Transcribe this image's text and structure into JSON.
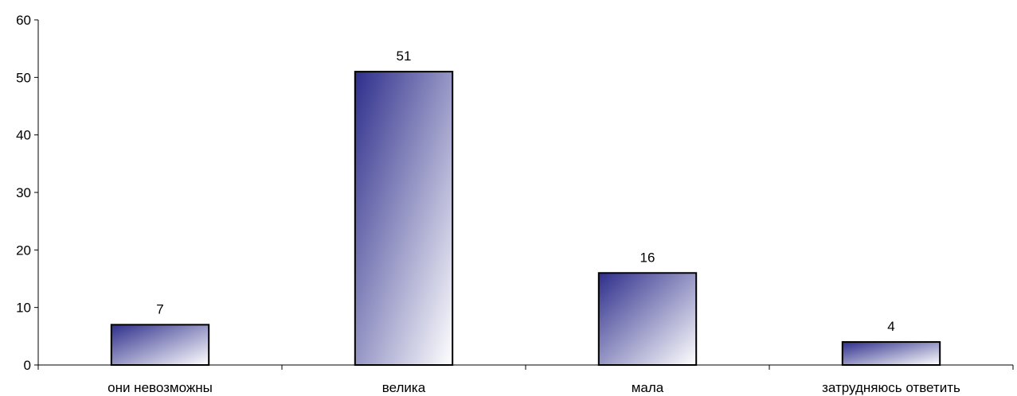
{
  "chart_data": {
    "type": "bar",
    "categories": [
      "они невозможны",
      "велика",
      "мала",
      "затрудняюсь ответить"
    ],
    "values": [
      7,
      51,
      16,
      4
    ],
    "data_labels": [
      "7",
      "51",
      "16",
      "4"
    ],
    "title": "",
    "xlabel": "",
    "ylabel": "",
    "ylim": [
      0,
      60
    ],
    "y_ticks": [
      0,
      10,
      20,
      30,
      40,
      50,
      60
    ],
    "y_tick_labels": [
      "0",
      "10",
      "20",
      "30",
      "40",
      "50",
      "60"
    ],
    "grid": false,
    "legend": "none",
    "bar_gradient": {
      "start": "#2e2e8c",
      "end": "#ffffff"
    },
    "bar_outline": "#000000",
    "axis_color": "#000000"
  }
}
